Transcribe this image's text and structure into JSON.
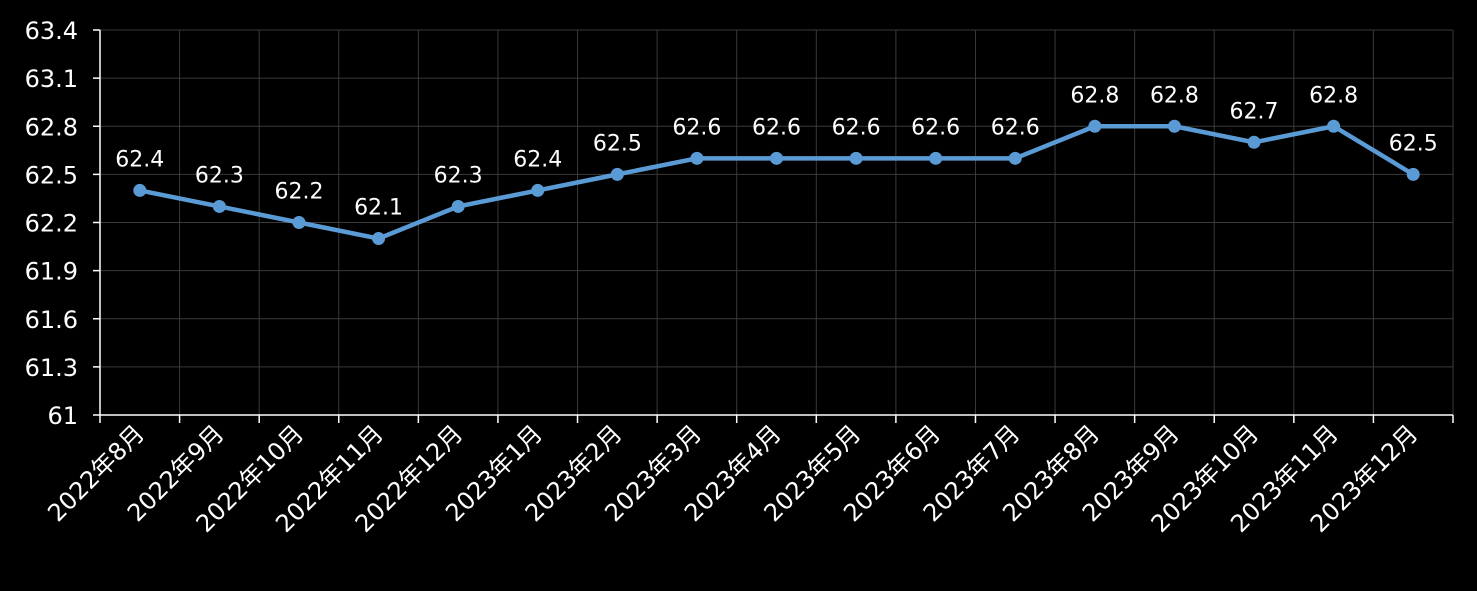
{
  "chart_data": {
    "type": "line",
    "title": "",
    "xlabel": "",
    "ylabel": "",
    "categories": [
      "2022年8月",
      "2022年9月",
      "2022年10月",
      "2022年11月",
      "2022年12月",
      "2023年1月",
      "2023年2月",
      "2023年3月",
      "2023年4月",
      "2023年5月",
      "2023年6月",
      "2023年7月",
      "2023年8月",
      "2023年9月",
      "2023年10月",
      "2023年11月",
      "2023年12月"
    ],
    "series": [
      {
        "values": [
          62.4,
          62.3,
          62.2,
          62.1,
          62.3,
          62.4,
          62.5,
          62.6,
          62.6,
          62.6,
          62.6,
          62.6,
          62.8,
          62.8,
          62.7,
          62.8,
          62.5
        ],
        "color": "#5b9bd5"
      }
    ],
    "ylim": [
      61,
      63.4
    ],
    "yticks": [
      "61",
      "61.3",
      "61.6",
      "61.9",
      "62.2",
      "62.5",
      "62.8",
      "63.1",
      "63.4"
    ],
    "ytick_values": [
      61,
      61.3,
      61.6,
      61.9,
      62.2,
      62.5,
      62.8,
      63.1,
      63.4
    ],
    "grid": true,
    "data_labels": true,
    "legend": "none",
    "colors": {
      "background": "#000000",
      "grid": "#3a3a3a",
      "axis": "#ffffff",
      "text": "#ffffff"
    }
  }
}
